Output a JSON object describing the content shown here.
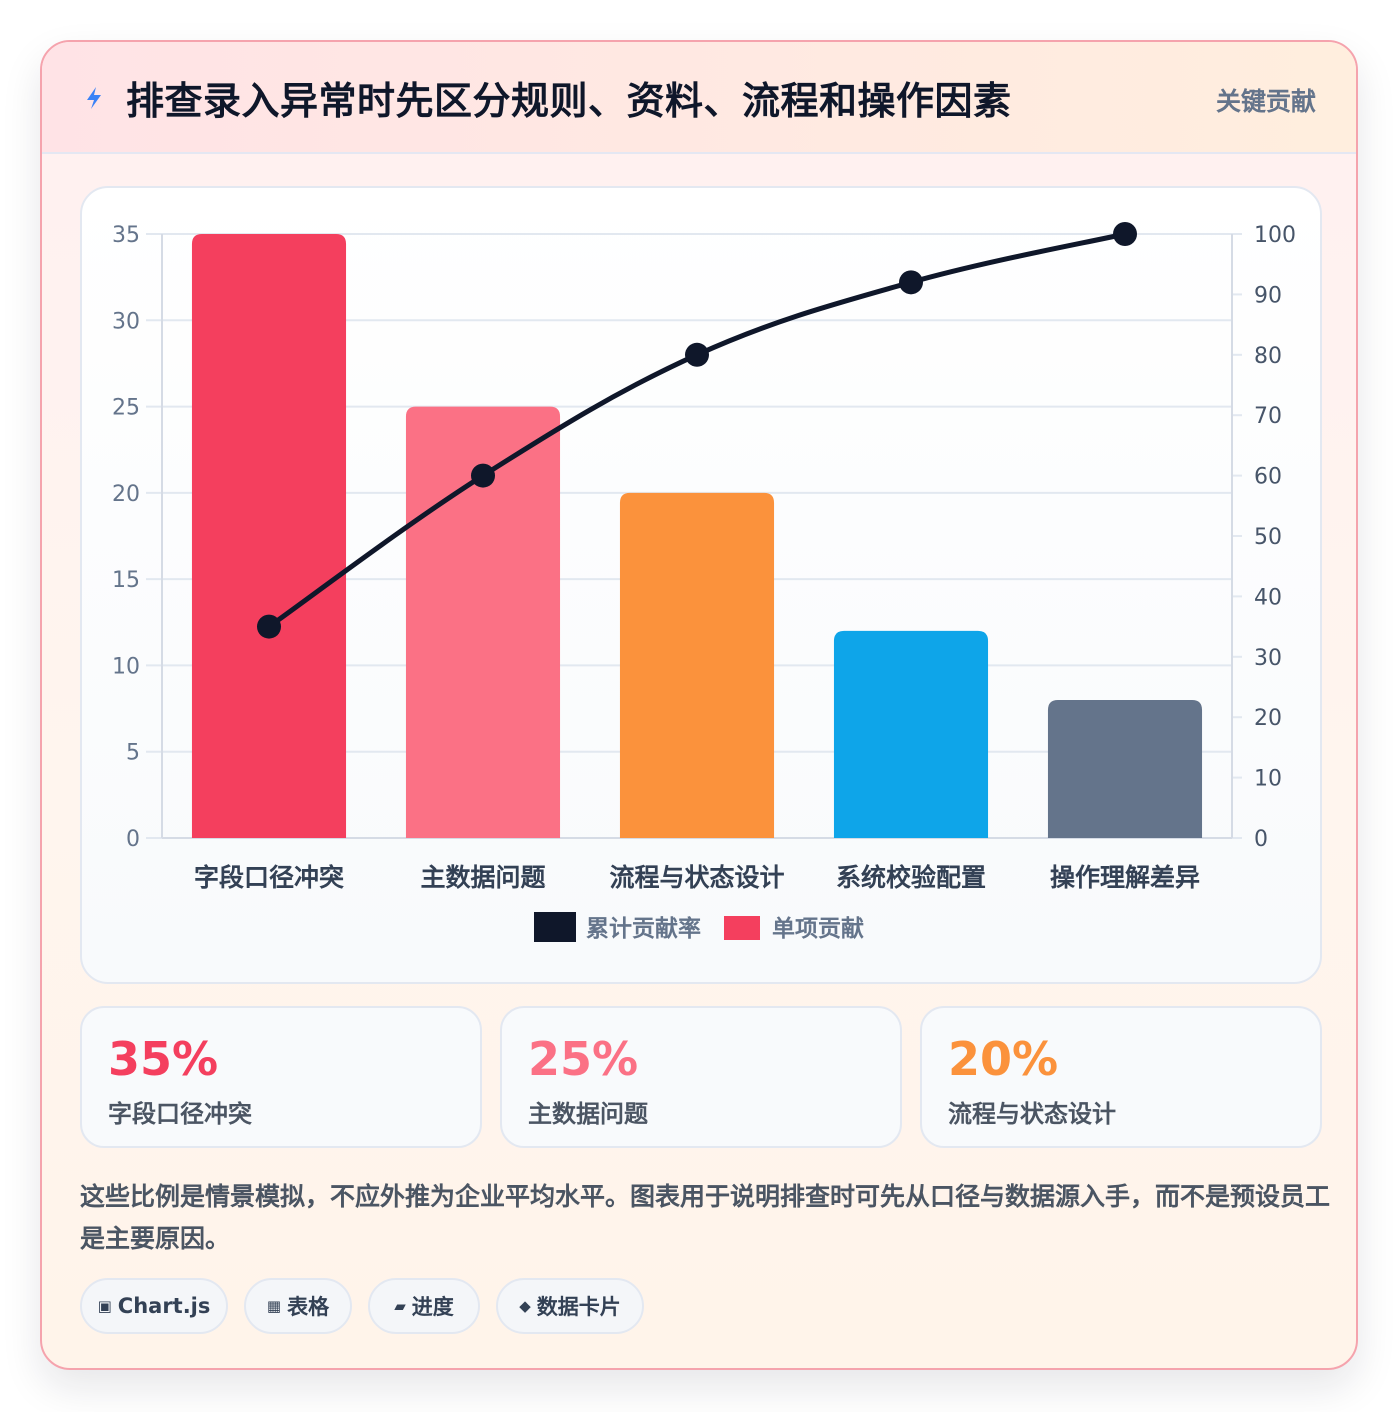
{
  "header": {
    "title": "排查录入异常时先区分规则、资料、流程和操作因素",
    "tag": "关键贡献",
    "icon": "bolt-icon"
  },
  "chart_data": {
    "type": "bar",
    "categories": [
      "字段口径冲突",
      "主数据问题",
      "流程与状态设计",
      "系统校验配置",
      "操作理解差异"
    ],
    "series": [
      {
        "name": "单项贡献",
        "type": "bar",
        "axis": "left",
        "values": [
          35,
          25,
          20,
          12,
          8
        ],
        "colors": [
          "#f43f5e",
          "#fb7185",
          "#fb923c",
          "#0ea5e9",
          "#64748b"
        ]
      },
      {
        "name": "累计贡献率",
        "type": "line",
        "axis": "right",
        "values": [
          35,
          60,
          80,
          92,
          100
        ],
        "color": "#0f172a"
      }
    ],
    "ylim": [
      0,
      35
    ],
    "yticks": [
      0,
      5,
      10,
      15,
      20,
      25,
      30,
      35
    ],
    "y2lim": [
      0,
      100
    ],
    "y2ticks": [
      0,
      10,
      20,
      30,
      40,
      50,
      60,
      70,
      80,
      90,
      100
    ],
    "legend": [
      "累计贡献率",
      "单项贡献"
    ],
    "legend_position": "bottom",
    "grid": true
  },
  "stats": [
    {
      "value": "35%",
      "label": "字段口径冲突",
      "color": "#f43f5e"
    },
    {
      "value": "25%",
      "label": "主数据问题",
      "color": "#fb7185"
    },
    {
      "value": "20%",
      "label": "流程与状态设计",
      "color": "#fb923c"
    }
  ],
  "note": "这些比例是情景模拟，不应外推为企业平均水平。图表用于说明排查时可先从口径与数据源入手，而不是预设员工是主要原因。",
  "chips": [
    {
      "icon": "▣",
      "label": "Chart.js"
    },
    {
      "icon": "▦",
      "label": "表格"
    },
    {
      "icon": "▰",
      "label": "进度"
    },
    {
      "icon": "◆",
      "label": "数据卡片"
    }
  ]
}
